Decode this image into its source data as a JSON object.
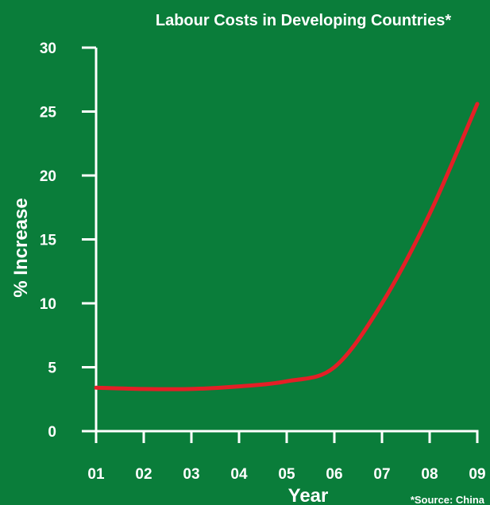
{
  "colors": {
    "background": "#0a7d3a",
    "axis": "#ffffff",
    "line": "#e41f26",
    "text": "#ffffff"
  },
  "chart_data": {
    "type": "line",
    "title": "Labour Costs in Developing Countries*",
    "xlabel": "Year",
    "ylabel": "% Increase",
    "footnote": "*Source: China",
    "categories": [
      "01",
      "02",
      "03",
      "04",
      "05",
      "06",
      "07",
      "08",
      "09"
    ],
    "yticks": [
      "0",
      "5",
      "10",
      "15",
      "20",
      "25",
      "30"
    ],
    "ylim": [
      0,
      30
    ],
    "grid": false,
    "legend": "none",
    "series": [
      {
        "values": [
          3.4,
          3.3,
          3.3,
          3.5,
          3.9,
          5.0,
          10.0,
          17.0,
          25.6
        ]
      }
    ]
  }
}
